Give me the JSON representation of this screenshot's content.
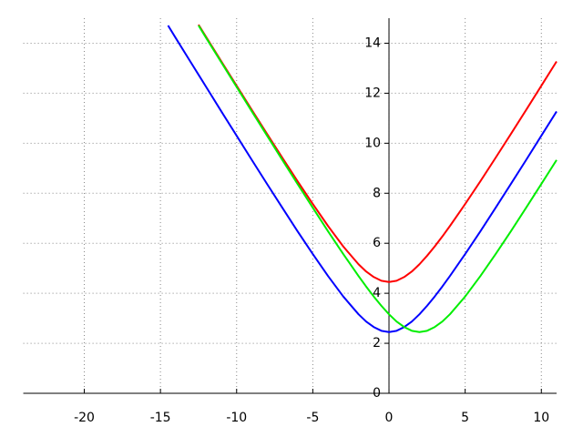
{
  "chart_data": {
    "type": "line",
    "x": [
      -14.5,
      -14,
      -13,
      -12.5,
      -12,
      -11,
      -10,
      -9,
      -8,
      -7,
      -6,
      -5,
      -4,
      -3,
      -2,
      -1.5,
      -1,
      -0.5,
      0,
      0.5,
      1,
      1.5,
      2,
      2.5,
      3,
      3.5,
      4,
      5,
      6,
      7,
      8,
      9,
      10,
      11
    ],
    "series": [
      {
        "color": "#ff0000",
        "values": [
          null,
          null,
          null,
          14.74,
          14.25,
          13.27,
          12.3,
          11.33,
          10.37,
          9.42,
          8.48,
          7.57,
          6.69,
          5.87,
          5.16,
          4.87,
          4.65,
          4.5,
          4.45,
          4.5,
          4.65,
          4.87,
          5.16,
          5.5,
          5.87,
          6.27,
          6.69,
          7.57,
          8.48,
          9.42,
          10.37,
          11.33,
          12.3,
          13.27
        ]
      },
      {
        "color": "#0000ff",
        "values": [
          14.71,
          14.21,
          13.23,
          12.74,
          12.25,
          11.27,
          10.3,
          9.33,
          8.37,
          7.42,
          6.48,
          5.57,
          4.69,
          3.87,
          3.16,
          2.87,
          2.65,
          2.5,
          2.45,
          2.5,
          2.65,
          2.87,
          3.16,
          3.5,
          3.87,
          4.27,
          4.69,
          5.57,
          6.48,
          7.42,
          8.37,
          9.33,
          10.3,
          11.27
        ]
      },
      {
        "color": "#00ee00",
        "values": [
          null,
          null,
          null,
          14.71,
          14.21,
          13.23,
          12.25,
          11.27,
          10.3,
          9.33,
          8.37,
          7.42,
          6.48,
          5.57,
          4.69,
          4.27,
          3.87,
          3.5,
          3.16,
          2.87,
          2.65,
          2.5,
          2.45,
          2.5,
          2.65,
          2.87,
          3.16,
          3.87,
          4.69,
          5.57,
          6.48,
          7.42,
          8.37,
          9.33
        ]
      }
    ],
    "xlim": [
      -24,
      11
    ],
    "ylim": [
      0,
      15
    ],
    "xticks": [
      -20,
      -15,
      -10,
      -5,
      0,
      5,
      10
    ],
    "yticks": [
      0,
      2,
      4,
      6,
      8,
      10,
      12,
      14
    ],
    "grid": true
  }
}
